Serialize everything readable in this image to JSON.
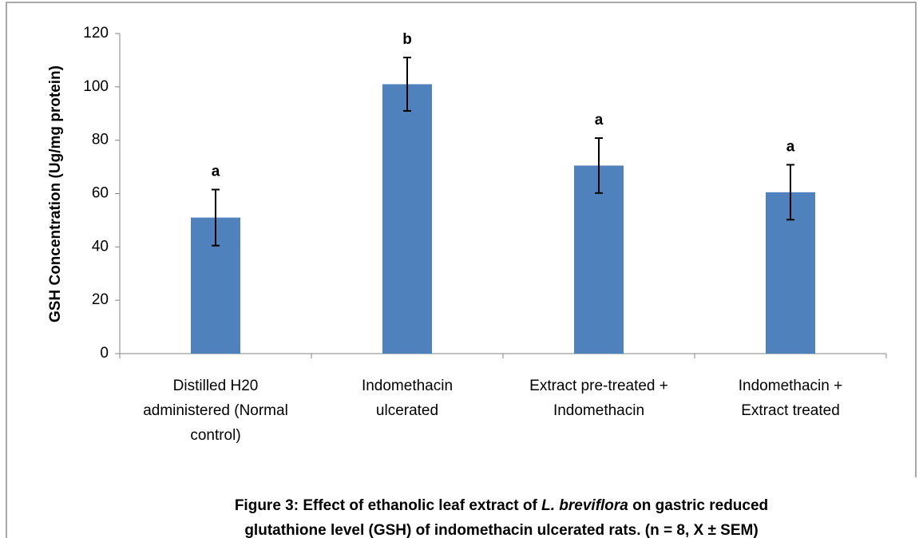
{
  "chart_data": {
    "type": "bar",
    "y_label": "GSH Concentration (Ug/mg protein)",
    "categories": [
      [
        "Distilled H20",
        "administered (Normal",
        "control)"
      ],
      [
        "Indomethacin",
        "ulcerated"
      ],
      [
        "Extract pre-treated +",
        "Indomethacin"
      ],
      [
        "Indomethacin +",
        "Extract treated"
      ]
    ],
    "values": [
      51,
      101,
      70.5,
      60.5
    ],
    "errors": [
      10.5,
      10,
      10.3,
      10.3
    ],
    "annotations": [
      "a",
      "b",
      "a",
      "a"
    ],
    "color": "#4f81bd",
    "ylim": [
      0,
      120
    ],
    "yticks": [
      0,
      20,
      40,
      60,
      80,
      100,
      120
    ],
    "grid": false,
    "caption": [
      "Figure 3: Effect of ethanolic leaf extract of ",
      "L. breviflora",
      " on gastric reduced",
      "glutathione level (GSH) of indomethacin ulcerated rats. (n = 8, X ± SEM)"
    ]
  }
}
